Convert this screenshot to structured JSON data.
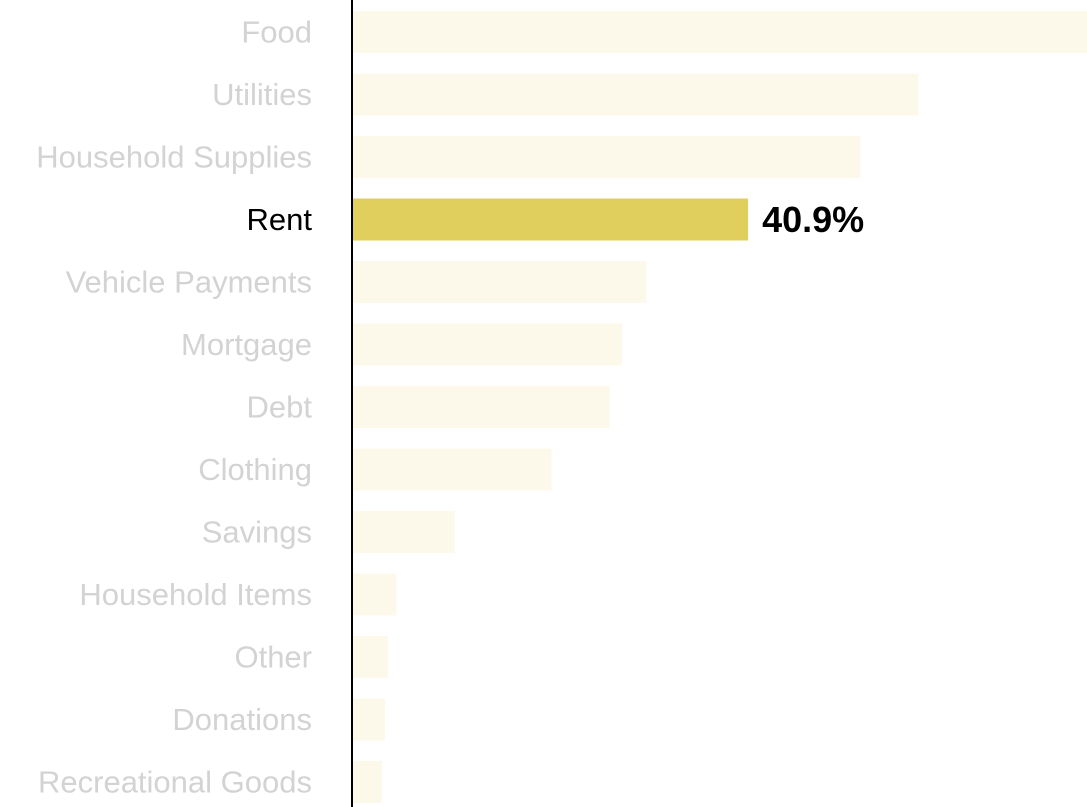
{
  "chart_data": {
    "type": "bar",
    "orientation": "horizontal",
    "categories": [
      "Food",
      "Utilities",
      "Household Supplies",
      "Rent",
      "Vehicle Payments",
      "Mortgage",
      "Debt",
      "Clothing",
      "Savings",
      "Household Items",
      "Other",
      "Donations",
      "Recreational Goods"
    ],
    "values": [
      75.9,
      58.5,
      52.5,
      40.9,
      30.4,
      27.9,
      26.6,
      20.6,
      10.6,
      4.6,
      3.7,
      3.4,
      3.1
    ],
    "highlight": {
      "category": "Rent",
      "value_label": "40.9%"
    },
    "unit": "%",
    "xlim": [
      0,
      75.9
    ],
    "grid": false,
    "legend": "none",
    "title": "",
    "xlabel": "",
    "ylabel": ""
  },
  "colors": {
    "highlight_bar": "#e0cf5d",
    "muted_bar": "#fcf8ea",
    "highlight_text": "#000000",
    "muted_text": "#d3d3d3",
    "axis_line": "#000000"
  }
}
